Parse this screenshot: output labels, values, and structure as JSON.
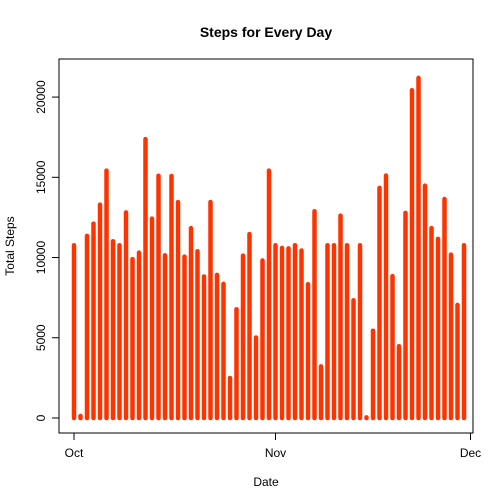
{
  "chart_data": {
    "type": "bar",
    "title": "Steps for Every Day",
    "xlabel": "Date",
    "ylabel": "Total Steps",
    "color": "#FF3300",
    "grid": false,
    "legend": "none",
    "xlim": [
      "2012-10-01",
      "2012-11-30"
    ],
    "ylim": [
      0,
      21500
    ],
    "x_ticks": [
      {
        "label": "Oct",
        "date": "2012-10-01"
      },
      {
        "label": "Nov",
        "date": "2012-11-01"
      },
      {
        "label": "Dec",
        "date": "2012-12-01"
      }
    ],
    "y_ticks": [
      0,
      5000,
      10000,
      15000,
      20000
    ],
    "x": [
      "2012-10-01",
      "2012-10-02",
      "2012-10-03",
      "2012-10-04",
      "2012-10-05",
      "2012-10-06",
      "2012-10-07",
      "2012-10-08",
      "2012-10-09",
      "2012-10-10",
      "2012-10-11",
      "2012-10-12",
      "2012-10-13",
      "2012-10-14",
      "2012-10-15",
      "2012-10-16",
      "2012-10-17",
      "2012-10-18",
      "2012-10-19",
      "2012-10-20",
      "2012-10-21",
      "2012-10-22",
      "2012-10-23",
      "2012-10-24",
      "2012-10-25",
      "2012-10-26",
      "2012-10-27",
      "2012-10-28",
      "2012-10-29",
      "2012-10-30",
      "2012-10-31",
      "2012-11-01",
      "2012-11-02",
      "2012-11-03",
      "2012-11-04",
      "2012-11-05",
      "2012-11-06",
      "2012-11-07",
      "2012-11-08",
      "2012-11-09",
      "2012-11-10",
      "2012-11-11",
      "2012-11-12",
      "2012-11-13",
      "2012-11-14",
      "2012-11-15",
      "2012-11-16",
      "2012-11-17",
      "2012-11-18",
      "2012-11-19",
      "2012-11-20",
      "2012-11-21",
      "2012-11-22",
      "2012-11-23",
      "2012-11-24",
      "2012-11-25",
      "2012-11-26",
      "2012-11-27",
      "2012-11-28",
      "2012-11-29",
      "2012-11-30"
    ],
    "values": [
      10766,
      126,
      11352,
      12116,
      13294,
      15420,
      11015,
      10766,
      12811,
      9900,
      10304,
      17382,
      12426,
      15098,
      10139,
      15084,
      13452,
      10056,
      11829,
      10395,
      8821,
      13460,
      8918,
      8355,
      2492,
      6778,
      10119,
      11458,
      5018,
      9819,
      15414,
      10766,
      10600,
      10571,
      10766,
      10439,
      8334,
      12883,
      3219,
      10766,
      10766,
      12608,
      10765,
      7336,
      10766,
      41,
      5441,
      14339,
      15110,
      8841,
      4472,
      12787,
      20427,
      21194,
      14478,
      11834,
      11162,
      13646,
      10183,
      7047,
      10766
    ]
  }
}
